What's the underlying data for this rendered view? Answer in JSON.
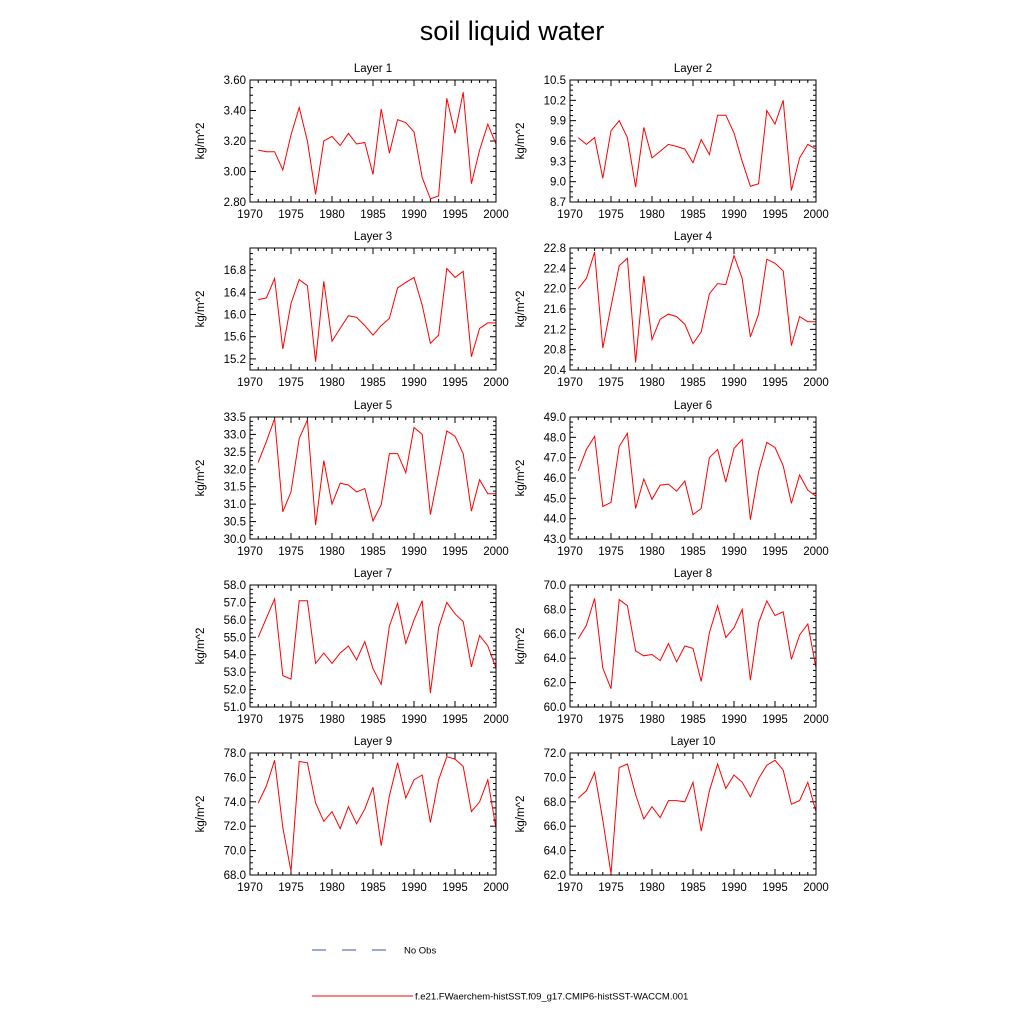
{
  "figure_title": "soil liquid water",
  "legend": [
    {
      "label": "No Obs",
      "color": "#3b4fb3",
      "style": "dashed"
    },
    {
      "label": "f.e21.FWaerchem-histSST.f09_g17.CMIP6-histSST-WACCM.001",
      "color": "#ff0000",
      "style": "solid"
    }
  ],
  "chart_data": [
    {
      "type": "line",
      "title": "Layer 1",
      "ylabel": "kg/m^2",
      "xlim": [
        1970,
        2000
      ],
      "ylim": [
        2.8,
        3.6
      ],
      "xticks": [
        "1970",
        "1975",
        "1980",
        "1985",
        "1990",
        "1995",
        "2000"
      ],
      "yticks": [
        "2.80",
        "3.00",
        "3.20",
        "3.40",
        "3.60"
      ],
      "x": [
        1971,
        1972,
        1973,
        1974,
        1975,
        1976,
        1977,
        1978,
        1979,
        1980,
        1981,
        1982,
        1983,
        1984,
        1985,
        1986,
        1987,
        1988,
        1989,
        1990,
        1991,
        1992,
        1993,
        1994,
        1995,
        1996,
        1997,
        1998,
        1999,
        2000
      ],
      "series": [
        {
          "values": [
            3.14,
            3.13,
            3.13,
            3.01,
            3.24,
            3.42,
            3.2,
            2.85,
            3.2,
            3.23,
            3.17,
            3.25,
            3.18,
            3.19,
            2.98,
            3.41,
            3.12,
            3.34,
            3.32,
            3.26,
            2.96,
            2.82,
            2.84,
            3.48,
            3.25,
            3.52,
            2.92,
            3.14,
            3.31,
            3.18
          ],
          "color": "#ff0000"
        }
      ]
    },
    {
      "type": "line",
      "title": "Layer 2",
      "ylabel": "kg/m^2",
      "xlim": [
        1970,
        2000
      ],
      "ylim": [
        8.7,
        10.5
      ],
      "xticks": [
        "1970",
        "1975",
        "1980",
        "1985",
        "1990",
        "1995",
        "2000"
      ],
      "yticks": [
        "8.7",
        "9.0",
        "9.3",
        "9.6",
        "9.9",
        "10.2",
        "10.5"
      ],
      "x": [
        1971,
        1972,
        1973,
        1974,
        1975,
        1976,
        1977,
        1978,
        1979,
        1980,
        1981,
        1982,
        1983,
        1984,
        1985,
        1986,
        1987,
        1988,
        1989,
        1990,
        1991,
        1992,
        1993,
        1994,
        1995,
        1996,
        1997,
        1998,
        1999,
        2000
      ],
      "series": [
        {
          "values": [
            9.65,
            9.55,
            9.65,
            9.05,
            9.75,
            9.9,
            9.65,
            8.92,
            9.8,
            9.35,
            9.45,
            9.55,
            9.52,
            9.48,
            9.28,
            9.62,
            9.4,
            9.98,
            9.98,
            9.72,
            9.3,
            8.93,
            8.97,
            10.05,
            9.85,
            10.2,
            8.87,
            9.35,
            9.55,
            9.48
          ],
          "color": "#ff0000"
        }
      ]
    },
    {
      "type": "line",
      "title": "Layer 3",
      "ylabel": "kg/m^2",
      "xlim": [
        1970,
        2000
      ],
      "ylim": [
        15.0,
        17.2
      ],
      "xticks": [
        "1970",
        "1975",
        "1980",
        "1985",
        "1990",
        "1995",
        "2000"
      ],
      "yticks": [
        "15.2",
        "15.6",
        "16.0",
        "16.4",
        "16.8"
      ],
      "x": [
        1971,
        1972,
        1973,
        1974,
        1975,
        1976,
        1977,
        1978,
        1979,
        1980,
        1981,
        1982,
        1983,
        1984,
        1985,
        1986,
        1987,
        1988,
        1989,
        1990,
        1991,
        1992,
        1993,
        1994,
        1995,
        1996,
        1997,
        1998,
        1999,
        2000
      ],
      "series": [
        {
          "values": [
            16.27,
            16.3,
            16.65,
            15.38,
            16.2,
            16.63,
            16.52,
            15.15,
            16.6,
            15.52,
            15.75,
            15.98,
            15.95,
            15.8,
            15.63,
            15.8,
            15.93,
            16.48,
            16.58,
            16.67,
            16.17,
            15.48,
            15.63,
            16.83,
            16.67,
            16.78,
            15.24,
            15.75,
            15.85,
            15.85
          ],
          "color": "#ff0000"
        }
      ]
    },
    {
      "type": "line",
      "title": "Layer 4",
      "ylabel": "kg/m^2",
      "xlim": [
        1970,
        2000
      ],
      "ylim": [
        20.4,
        22.8
      ],
      "xticks": [
        "1970",
        "1975",
        "1980",
        "1985",
        "1990",
        "1995",
        "2000"
      ],
      "yticks": [
        "20.4",
        "20.8",
        "21.2",
        "21.6",
        "22.0",
        "22.4",
        "22.8"
      ],
      "x": [
        1971,
        1972,
        1973,
        1974,
        1975,
        1976,
        1977,
        1978,
        1979,
        1980,
        1981,
        1982,
        1983,
        1984,
        1985,
        1986,
        1987,
        1988,
        1989,
        1990,
        1991,
        1992,
        1993,
        1994,
        1995,
        1996,
        1997,
        1998,
        1999,
        2000
      ],
      "series": [
        {
          "values": [
            22.0,
            22.2,
            22.72,
            20.83,
            21.65,
            22.45,
            22.6,
            20.55,
            22.25,
            21.0,
            21.4,
            21.5,
            21.45,
            21.3,
            20.92,
            21.15,
            21.9,
            22.1,
            22.08,
            22.65,
            22.2,
            21.05,
            21.5,
            22.58,
            22.5,
            22.35,
            20.88,
            21.45,
            21.35,
            21.35
          ],
          "color": "#ff0000"
        }
      ]
    },
    {
      "type": "line",
      "title": "Layer 5",
      "ylabel": "kg/m^2",
      "xlim": [
        1970,
        2000
      ],
      "ylim": [
        30.0,
        33.5
      ],
      "xticks": [
        "1970",
        "1975",
        "1980",
        "1985",
        "1990",
        "1995",
        "2000"
      ],
      "yticks": [
        "30.0",
        "30.5",
        "31.0",
        "31.5",
        "32.0",
        "32.5",
        "33.0",
        "33.5"
      ],
      "x": [
        1971,
        1972,
        1973,
        1974,
        1975,
        1976,
        1977,
        1978,
        1979,
        1980,
        1981,
        1982,
        1983,
        1984,
        1985,
        1986,
        1987,
        1988,
        1989,
        1990,
        1991,
        1992,
        1993,
        1994,
        1995,
        1996,
        1997,
        1998,
        1999,
        2000
      ],
      "series": [
        {
          "values": [
            32.2,
            32.8,
            33.45,
            30.78,
            31.35,
            32.88,
            33.42,
            30.4,
            32.25,
            31.0,
            31.6,
            31.55,
            31.35,
            31.45,
            30.52,
            30.98,
            32.45,
            32.45,
            31.9,
            33.2,
            33.0,
            30.7,
            31.9,
            33.1,
            32.95,
            32.45,
            30.8,
            31.7,
            31.3,
            31.3
          ],
          "color": "#ff0000"
        }
      ]
    },
    {
      "type": "line",
      "title": "Layer 6",
      "ylabel": "kg/m^2",
      "xlim": [
        1970,
        2000
      ],
      "ylim": [
        43.0,
        49.0
      ],
      "xticks": [
        "1970",
        "1975",
        "1980",
        "1985",
        "1990",
        "1995",
        "2000"
      ],
      "yticks": [
        "43.0",
        "44.0",
        "45.0",
        "46.0",
        "47.0",
        "48.0",
        "49.0"
      ],
      "x": [
        1971,
        1972,
        1973,
        1974,
        1975,
        1976,
        1977,
        1978,
        1979,
        1980,
        1981,
        1982,
        1983,
        1984,
        1985,
        1986,
        1987,
        1988,
        1989,
        1990,
        1991,
        1992,
        1993,
        1994,
        1995,
        1996,
        1997,
        1998,
        1999,
        2000
      ],
      "series": [
        {
          "values": [
            46.35,
            47.4,
            48.05,
            44.6,
            44.8,
            47.55,
            48.2,
            44.5,
            45.95,
            44.95,
            45.65,
            45.7,
            45.35,
            45.85,
            44.2,
            44.5,
            47.0,
            47.4,
            45.8,
            47.45,
            47.9,
            43.95,
            46.3,
            47.75,
            47.5,
            46.6,
            44.75,
            46.15,
            45.4,
            45.1
          ],
          "color": "#ff0000"
        }
      ]
    },
    {
      "type": "line",
      "title": "Layer 7",
      "ylabel": "kg/m^2",
      "xlim": [
        1970,
        2000
      ],
      "ylim": [
        51.0,
        58.0
      ],
      "xticks": [
        "1970",
        "1975",
        "1980",
        "1985",
        "1990",
        "1995",
        "2000"
      ],
      "yticks": [
        "51.0",
        "52.0",
        "53.0",
        "54.0",
        "55.0",
        "56.0",
        "57.0",
        "58.0"
      ],
      "x": [
        1971,
        1972,
        1973,
        1974,
        1975,
        1976,
        1977,
        1978,
        1979,
        1980,
        1981,
        1982,
        1983,
        1984,
        1985,
        1986,
        1987,
        1988,
        1989,
        1990,
        1991,
        1992,
        1993,
        1994,
        1995,
        1996,
        1997,
        1998,
        1999,
        2000
      ],
      "series": [
        {
          "values": [
            55.0,
            56.1,
            57.2,
            52.8,
            52.6,
            57.1,
            57.1,
            53.5,
            54.1,
            53.5,
            54.1,
            54.5,
            53.7,
            54.75,
            53.2,
            52.3,
            55.65,
            56.95,
            54.65,
            56.0,
            57.1,
            51.8,
            55.55,
            57.0,
            56.35,
            55.9,
            53.3,
            55.1,
            54.5,
            53.25
          ],
          "color": "#ff0000"
        }
      ]
    },
    {
      "type": "line",
      "title": "Layer 8",
      "ylabel": "kg/m^2",
      "xlim": [
        1970,
        2000
      ],
      "ylim": [
        60.0,
        70.0
      ],
      "xticks": [
        "1970",
        "1975",
        "1980",
        "1985",
        "1990",
        "1995",
        "2000"
      ],
      "yticks": [
        "60.0",
        "62.0",
        "64.0",
        "66.0",
        "68.0",
        "70.0"
      ],
      "x": [
        1971,
        1972,
        1973,
        1974,
        1975,
        1976,
        1977,
        1978,
        1979,
        1980,
        1981,
        1982,
        1983,
        1984,
        1985,
        1986,
        1987,
        1988,
        1989,
        1990,
        1991,
        1992,
        1993,
        1994,
        1995,
        1996,
        1997,
        1998,
        1999,
        2000
      ],
      "series": [
        {
          "values": [
            65.6,
            66.7,
            68.9,
            63.2,
            61.5,
            68.8,
            68.3,
            64.6,
            64.2,
            64.3,
            63.8,
            65.2,
            63.7,
            65.0,
            64.8,
            62.1,
            66.1,
            68.3,
            65.7,
            66.5,
            68.0,
            62.2,
            66.9,
            68.7,
            67.5,
            67.8,
            63.9,
            65.9,
            66.8,
            63.2
          ],
          "color": "#ff0000"
        }
      ]
    },
    {
      "type": "line",
      "title": "Layer 9",
      "ylabel": "kg/m^2",
      "xlim": [
        1970,
        2000
      ],
      "ylim": [
        68.0,
        78.0
      ],
      "xticks": [
        "1970",
        "1975",
        "1980",
        "1985",
        "1990",
        "1995",
        "2000"
      ],
      "yticks": [
        "68.0",
        "70.0",
        "72.0",
        "74.0",
        "76.0",
        "78.0"
      ],
      "x": [
        1971,
        1972,
        1973,
        1974,
        1975,
        1976,
        1977,
        1978,
        1979,
        1980,
        1981,
        1982,
        1983,
        1984,
        1985,
        1986,
        1987,
        1988,
        1989,
        1990,
        1991,
        1992,
        1993,
        1994,
        1995,
        1996,
        1997,
        1998,
        1999,
        2000
      ],
      "series": [
        {
          "values": [
            73.9,
            75.3,
            77.4,
            71.9,
            68.3,
            77.3,
            77.2,
            73.9,
            72.4,
            73.2,
            71.8,
            73.6,
            72.2,
            73.4,
            75.2,
            70.4,
            74.5,
            77.2,
            74.3,
            75.8,
            76.2,
            72.3,
            75.8,
            77.7,
            77.5,
            76.9,
            73.2,
            74.0,
            75.8,
            71.8
          ],
          "color": "#ff0000"
        }
      ]
    },
    {
      "type": "line",
      "title": "Layer 10",
      "ylabel": "kg/m^2",
      "xlim": [
        1970,
        2000
      ],
      "ylim": [
        62.0,
        72.0
      ],
      "xticks": [
        "1970",
        "1975",
        "1980",
        "1985",
        "1990",
        "1995",
        "2000"
      ],
      "yticks": [
        "62.0",
        "64.0",
        "66.0",
        "68.0",
        "70.0",
        "72.0"
      ],
      "x": [
        1971,
        1972,
        1973,
        1974,
        1975,
        1976,
        1977,
        1978,
        1979,
        1980,
        1981,
        1982,
        1983,
        1984,
        1985,
        1986,
        1987,
        1988,
        1989,
        1990,
        1991,
        1992,
        1993,
        1994,
        1995,
        1996,
        1997,
        1998,
        1999,
        2000
      ],
      "series": [
        {
          "values": [
            68.3,
            68.9,
            70.4,
            66.5,
            62.1,
            70.8,
            71.1,
            68.6,
            66.6,
            67.6,
            66.7,
            68.1,
            68.1,
            68.0,
            69.6,
            65.6,
            68.9,
            71.1,
            69.1,
            70.2,
            69.6,
            68.4,
            69.9,
            71.0,
            71.4,
            70.6,
            67.8,
            68.1,
            69.6,
            67.2
          ],
          "color": "#ff0000"
        }
      ]
    }
  ]
}
